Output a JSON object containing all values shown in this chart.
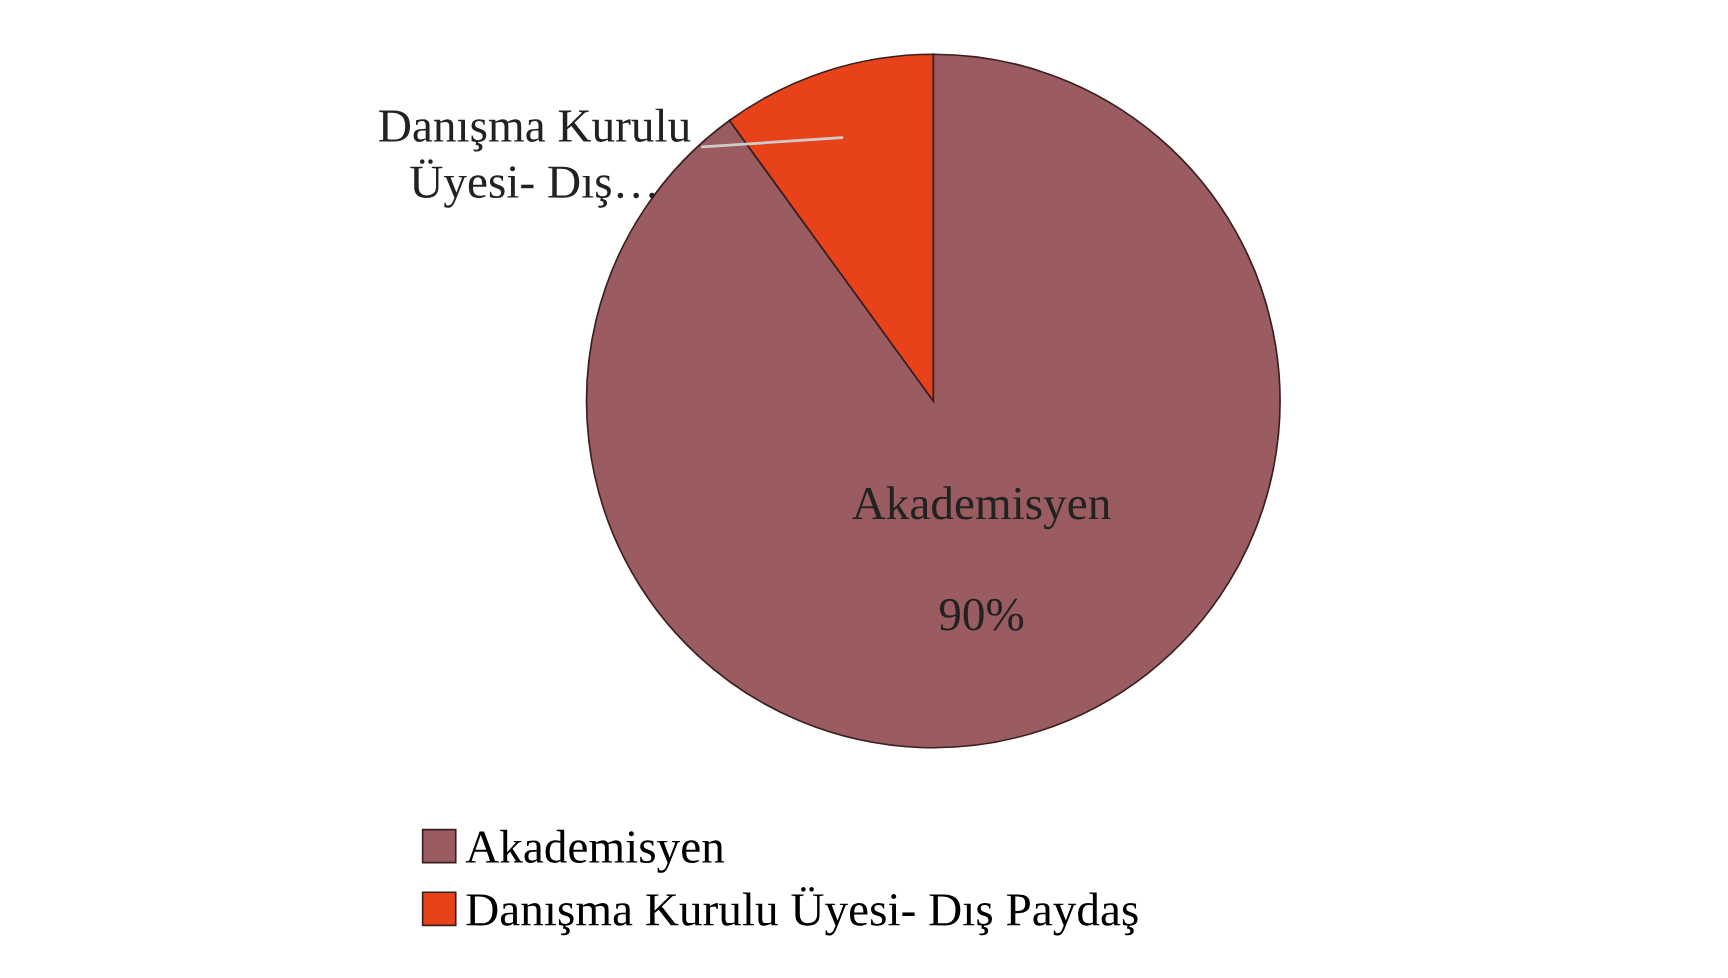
{
  "chart_data": {
    "type": "pie",
    "categories": [
      "Akademisyen",
      "Danışma Kurulu Üyesi- Dış Paydaş"
    ],
    "values": [
      90,
      10
    ],
    "colors": [
      "#9a5c60",
      "#e8421b"
    ],
    "value_labels": [
      "90%",
      null
    ],
    "annotations": [
      "Akademisyen",
      "Danışma Kurulu\nÜyesi- Dış…"
    ],
    "legend": "bottom left"
  }
}
